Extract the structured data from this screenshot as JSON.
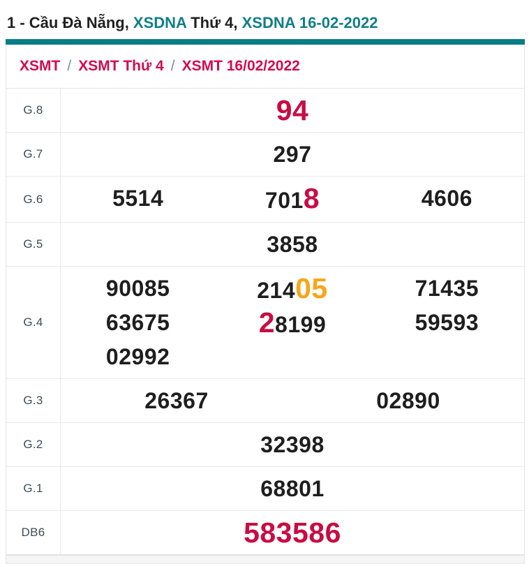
{
  "page_title": {
    "segments": [
      {
        "text": "1 - Cầu Đà Nẵng, ",
        "style": "dark",
        "link": false
      },
      {
        "text": "XSDNA",
        "style": "teal",
        "link": true
      },
      {
        "text": " Thứ 4, ",
        "style": "dark",
        "link": false
      },
      {
        "text": "XSDNA 16-02-2022",
        "style": "teal",
        "link": true
      }
    ]
  },
  "breadcrumb": {
    "separator": "/",
    "items": [
      {
        "label": "XSMT"
      },
      {
        "label": "XSMT Thứ 4"
      },
      {
        "label": "XSMT 16/02/2022"
      }
    ]
  },
  "results_table": {
    "rows": [
      {
        "label": "G.8",
        "lines": [
          [
            [
              {
                "t": "94",
                "c": "red",
                "big": true
              }
            ]
          ]
        ]
      },
      {
        "label": "G.7",
        "lines": [
          [
            [
              {
                "t": "297"
              }
            ]
          ]
        ]
      },
      {
        "label": "G.6",
        "lines": [
          [
            [
              {
                "t": "5514"
              }
            ],
            [
              {
                "t": "701"
              },
              {
                "t": "8",
                "c": "red",
                "big": true
              }
            ],
            [
              {
                "t": "4606"
              }
            ]
          ]
        ]
      },
      {
        "label": "G.5",
        "lines": [
          [
            [
              {
                "t": "3858"
              }
            ]
          ]
        ]
      },
      {
        "label": "G.4",
        "lines": [
          [
            [
              {
                "t": "90085"
              }
            ],
            [
              {
                "t": "214"
              },
              {
                "t": "05",
                "c": "orange",
                "big": true
              }
            ],
            [
              {
                "t": "71435"
              }
            ]
          ],
          [
            [
              {
                "t": "63675"
              }
            ],
            [
              {
                "t": "2",
                "c": "red",
                "big": true
              },
              {
                "t": "8199"
              }
            ],
            [
              {
                "t": "59593"
              }
            ]
          ],
          [
            [
              {
                "t": "02992"
              }
            ],
            [],
            []
          ]
        ]
      },
      {
        "label": "G.3",
        "lines": [
          [
            [
              {
                "t": "26367"
              }
            ],
            [
              {
                "t": "02890"
              }
            ]
          ]
        ]
      },
      {
        "label": "G.2",
        "lines": [
          [
            [
              {
                "t": "32398"
              }
            ]
          ]
        ]
      },
      {
        "label": "G.1",
        "lines": [
          [
            [
              {
                "t": "68801"
              }
            ]
          ]
        ]
      },
      {
        "label": "DB6",
        "lines": [
          [
            [
              {
                "t": "583586",
                "c": "red",
                "big": true
              }
            ]
          ]
        ]
      }
    ]
  },
  "colors": {
    "accent_teal": "#0b7d86",
    "link_teal": "#0f7f89",
    "highlight_red": "#c90c43",
    "breadcrumb_red": "#d40a50",
    "highlight_orange": "#f9a51a",
    "number_dark": "#1e1e1e"
  }
}
